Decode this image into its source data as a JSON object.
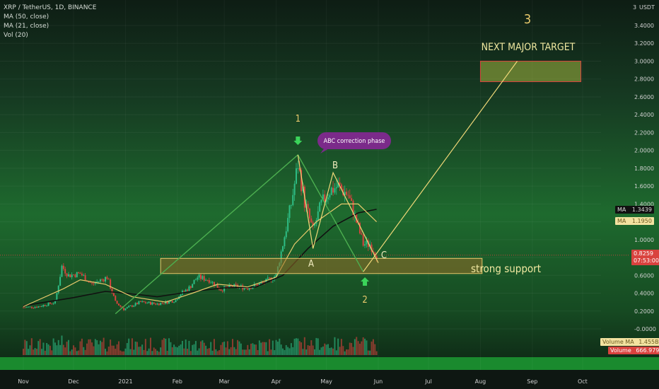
{
  "legend": {
    "symbol_line": "XRP / TetherUS, 1D, BINANCE",
    "ma50": "MA (50, close)",
    "ma21": "MA (21, close)",
    "vol": "Vol (20)"
  },
  "price_axis": {
    "currency": "USDT",
    "ticks": [
      "3.4000",
      "3.2000",
      "3.0000",
      "2.8000",
      "2.6000",
      "2.4000",
      "2.2000",
      "2.0000",
      "1.8000",
      "1.6000",
      "1.4000",
      "1.2000",
      "1.0000",
      "0.8000",
      "0.6000",
      "0.4000",
      "0.2000",
      "-0.0000"
    ],
    "top_label": "3"
  },
  "time_axis": {
    "labels": [
      "Nov",
      "Dec",
      "2021",
      "Feb",
      "Mar",
      "Apr",
      "May",
      "Jun",
      "Jul",
      "Aug",
      "Sep",
      "Oct"
    ]
  },
  "tags": {
    "ma1_name": "MA",
    "ma1_value": "1.3439",
    "ma2_name": "MA",
    "ma2_value": "1.1950",
    "price": "0.8259",
    "countdown": "07:53:00",
    "vol_ma": "Volume MA",
    "vol_ma_value": "1.455B",
    "volume": "Volume",
    "volume_value": "666.979M"
  },
  "annotations": {
    "wave1": "1",
    "wave2": "2",
    "wave3": "3",
    "a": "A",
    "b": "B",
    "c": "C",
    "correction": "ABC correction phase",
    "target": "NEXT MAJOR TARGET",
    "support": "strong support"
  },
  "colors": {
    "up": "#2ebd85",
    "down": "#d9423e",
    "ma50": "#111111",
    "ma21": "#e8c96c",
    "green_line": "#4caf50",
    "yellow_line": "#f0d878",
    "bubble": "#7b2a8a"
  },
  "chart_data": {
    "type": "candlestick",
    "title": "XRP / TetherUS, 1D, BINANCE",
    "ylim": [
      -0.05,
      3.5
    ],
    "x_ticks": [
      "Nov",
      "Dec",
      "2021",
      "Feb",
      "Mar",
      "Apr",
      "May",
      "Jun",
      "Jul",
      "Aug",
      "Sep",
      "Oct"
    ],
    "close_path": [
      [
        "2020-11-01",
        0.24
      ],
      [
        "2020-11-10",
        0.25
      ],
      [
        "2020-11-20",
        0.3
      ],
      [
        "2020-11-24",
        0.7
      ],
      [
        "2020-11-28",
        0.6
      ],
      [
        "2020-12-05",
        0.62
      ],
      [
        "2020-12-12",
        0.5
      ],
      [
        "2020-12-21",
        0.58
      ],
      [
        "2020-12-26",
        0.3
      ],
      [
        "2020-12-31",
        0.22
      ],
      [
        "2021-01-10",
        0.3
      ],
      [
        "2021-01-20",
        0.28
      ],
      [
        "2021-01-31",
        0.32
      ],
      [
        "2021-02-02",
        0.38
      ],
      [
        "2021-02-08",
        0.46
      ],
      [
        "2021-02-13",
        0.58
      ],
      [
        "2021-02-20",
        0.55
      ],
      [
        "2021-02-27",
        0.44
      ],
      [
        "2021-03-06",
        0.48
      ],
      [
        "2021-03-15",
        0.46
      ],
      [
        "2021-03-25",
        0.52
      ],
      [
        "2021-04-01",
        0.6
      ],
      [
        "2021-04-05",
        0.95
      ],
      [
        "2021-04-10",
        1.4
      ],
      [
        "2021-04-14",
        1.85
      ],
      [
        "2021-04-18",
        1.42
      ],
      [
        "2021-04-23",
        1.1
      ],
      [
        "2021-04-28",
        1.4
      ],
      [
        "2021-05-03",
        1.55
      ],
      [
        "2021-05-08",
        1.6
      ],
      [
        "2021-05-14",
        1.5
      ],
      [
        "2021-05-19",
        1.2
      ],
      [
        "2021-05-23",
        0.95
      ],
      [
        "2021-05-27",
        0.95
      ],
      [
        "2021-05-31",
        0.83
      ]
    ],
    "ma50_path": [
      [
        "2020-11-01",
        0.26
      ],
      [
        "2020-12-01",
        0.35
      ],
      [
        "2020-12-20",
        0.42
      ],
      [
        "2021-01-01",
        0.4
      ],
      [
        "2021-01-20",
        0.36
      ],
      [
        "2021-02-10",
        0.42
      ],
      [
        "2021-03-01",
        0.46
      ],
      [
        "2021-03-20",
        0.47
      ],
      [
        "2021-04-05",
        0.6
      ],
      [
        "2021-04-20",
        0.9
      ],
      [
        "2021-05-05",
        1.15
      ],
      [
        "2021-05-20",
        1.3
      ],
      [
        "2021-05-31",
        1.34
      ]
    ],
    "ma21_path": [
      [
        "2020-11-01",
        0.25
      ],
      [
        "2020-11-25",
        0.45
      ],
      [
        "2020-12-05",
        0.55
      ],
      [
        "2020-12-20",
        0.5
      ],
      [
        "2021-01-05",
        0.36
      ],
      [
        "2021-01-25",
        0.3
      ],
      [
        "2021-02-10",
        0.4
      ],
      [
        "2021-02-25",
        0.5
      ],
      [
        "2021-03-15",
        0.47
      ],
      [
        "2021-04-01",
        0.58
      ],
      [
        "2021-04-12",
        0.95
      ],
      [
        "2021-04-25",
        1.2
      ],
      [
        "2021-05-10",
        1.4
      ],
      [
        "2021-05-20",
        1.4
      ],
      [
        "2021-05-31",
        1.2
      ]
    ],
    "last_price": 0.8259,
    "ma50_last": 1.3439,
    "ma21_last": 1.195,
    "volume_ma": "1.455B",
    "volume_last": "666.979M",
    "support_zone": [
      0.62,
      0.79
    ],
    "target_zone": [
      2.77,
      3.0
    ],
    "wave_path": [
      [
        "2020-12-26",
        0.17
      ],
      [
        "2021-04-14",
        1.95
      ],
      [
        "2021-05-23",
        0.64
      ],
      [
        "2021-08-23",
        3.0
      ]
    ],
    "abc_path": [
      [
        "2021-04-14",
        1.95
      ],
      [
        "2021-04-23",
        0.9
      ],
      [
        "2021-05-05",
        1.75
      ],
      [
        "2021-06-01",
        0.74
      ]
    ]
  }
}
